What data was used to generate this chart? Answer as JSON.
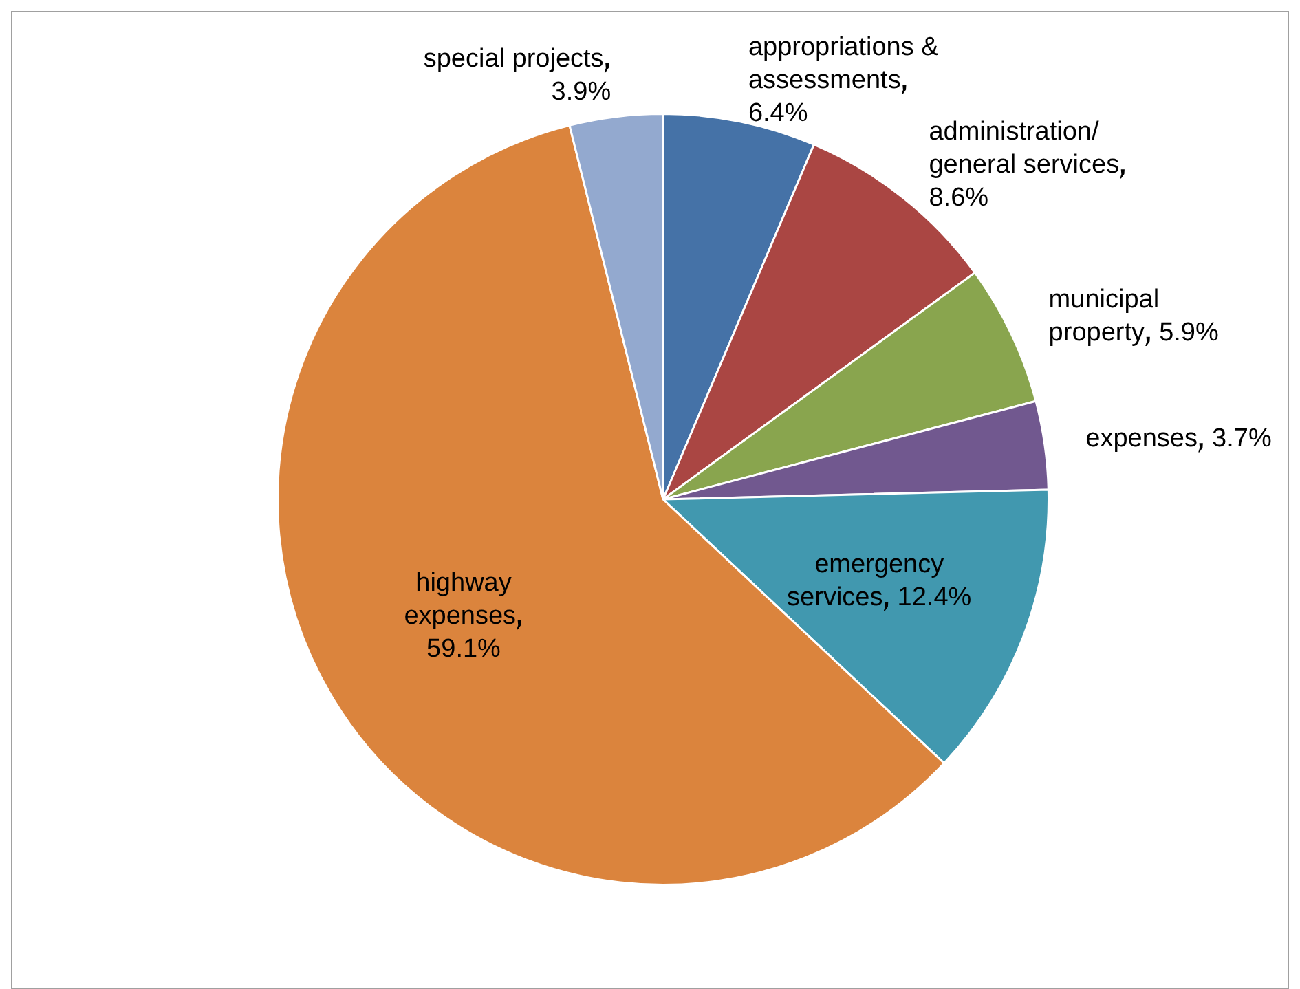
{
  "chart_data": {
    "type": "pie",
    "categories": [
      "appropriations & assessments",
      "administration/general services",
      "municipal property",
      "expenses",
      "emergency services",
      "highway expenses",
      "special projects"
    ],
    "values": [
      6.4,
      8.6,
      5.9,
      3.7,
      12.4,
      59.1,
      3.9
    ],
    "colors": [
      "#4572a7",
      "#aa4643",
      "#89a54e",
      "#71588f",
      "#4198af",
      "#db843d",
      "#93a9cf"
    ],
    "value_labels": [
      "6.4%",
      "8.6%",
      "5.9%",
      "3.7%",
      "12.4%",
      "59.1%",
      "3.9%"
    ],
    "legend": false
  }
}
